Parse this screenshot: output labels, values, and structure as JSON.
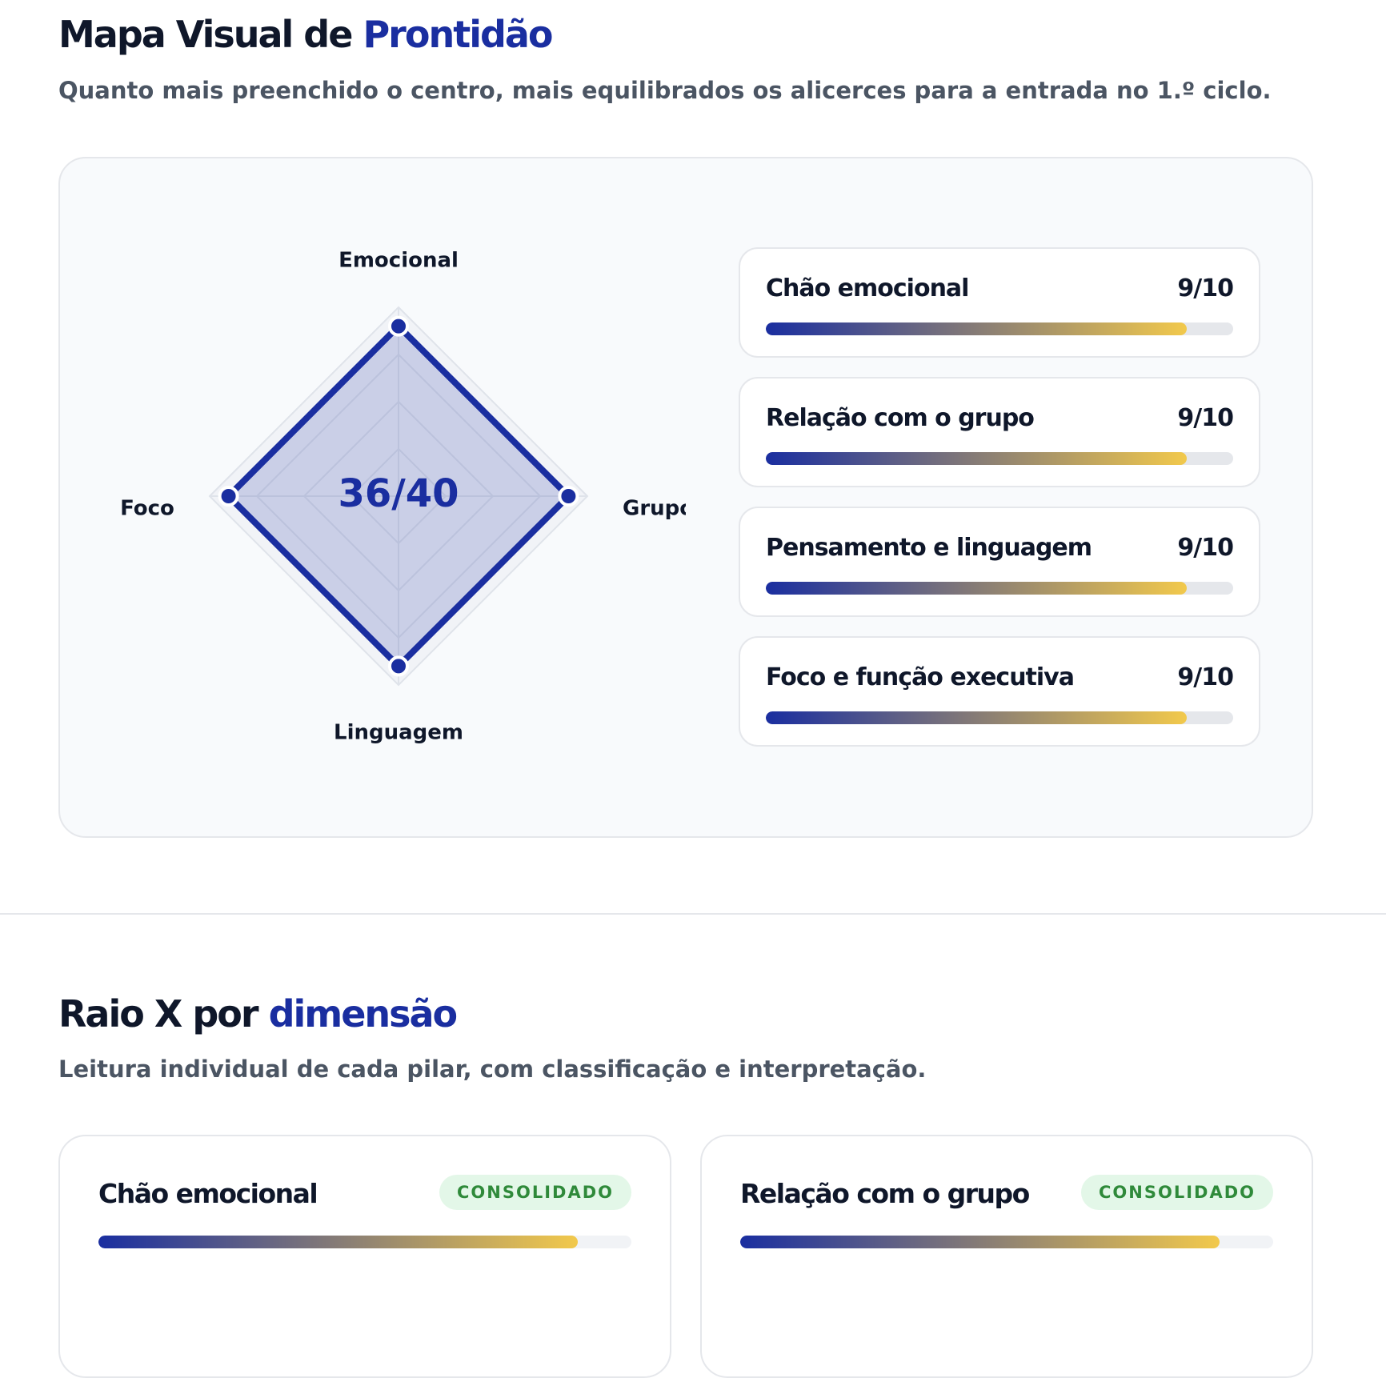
{
  "section1": {
    "title": "Mapa Visual de",
    "title_highlight": "Prontidão",
    "subtitle": "Quanto mais preenchido o centro, mais equilibrados os alicerces para a entrada no 1.º ciclo.",
    "radar": {
      "type": "radar",
      "axes": [
        "Emocional",
        "Grupo",
        "Linguagem",
        "Foco"
      ],
      "values": [
        9,
        9,
        9,
        9
      ],
      "max": 10,
      "center_label": "36/40"
    },
    "bars": [
      {
        "label": "Chão emocional",
        "value": 9,
        "value_label": "9/10"
      },
      {
        "label": "Relação com o grupo",
        "value": 9,
        "value_label": "9/10"
      },
      {
        "label": "Pensamento e linguagem",
        "value": 9,
        "value_label": "9/10"
      },
      {
        "label": "Foco e função executiva",
        "value": 9,
        "value_label": "9/10"
      }
    ]
  },
  "section2": {
    "title": "Raio X por",
    "title_highlight": "dimensão",
    "subtitle": "Leitura individual de cada pilar, com classificação e interpretação.",
    "cards": [
      {
        "title": "Chão emocional",
        "badge": "CONSOLIDADO",
        "value": 9
      },
      {
        "title": "Relação com o grupo",
        "badge": "CONSOLIDADO",
        "value": 9
      }
    ]
  }
}
